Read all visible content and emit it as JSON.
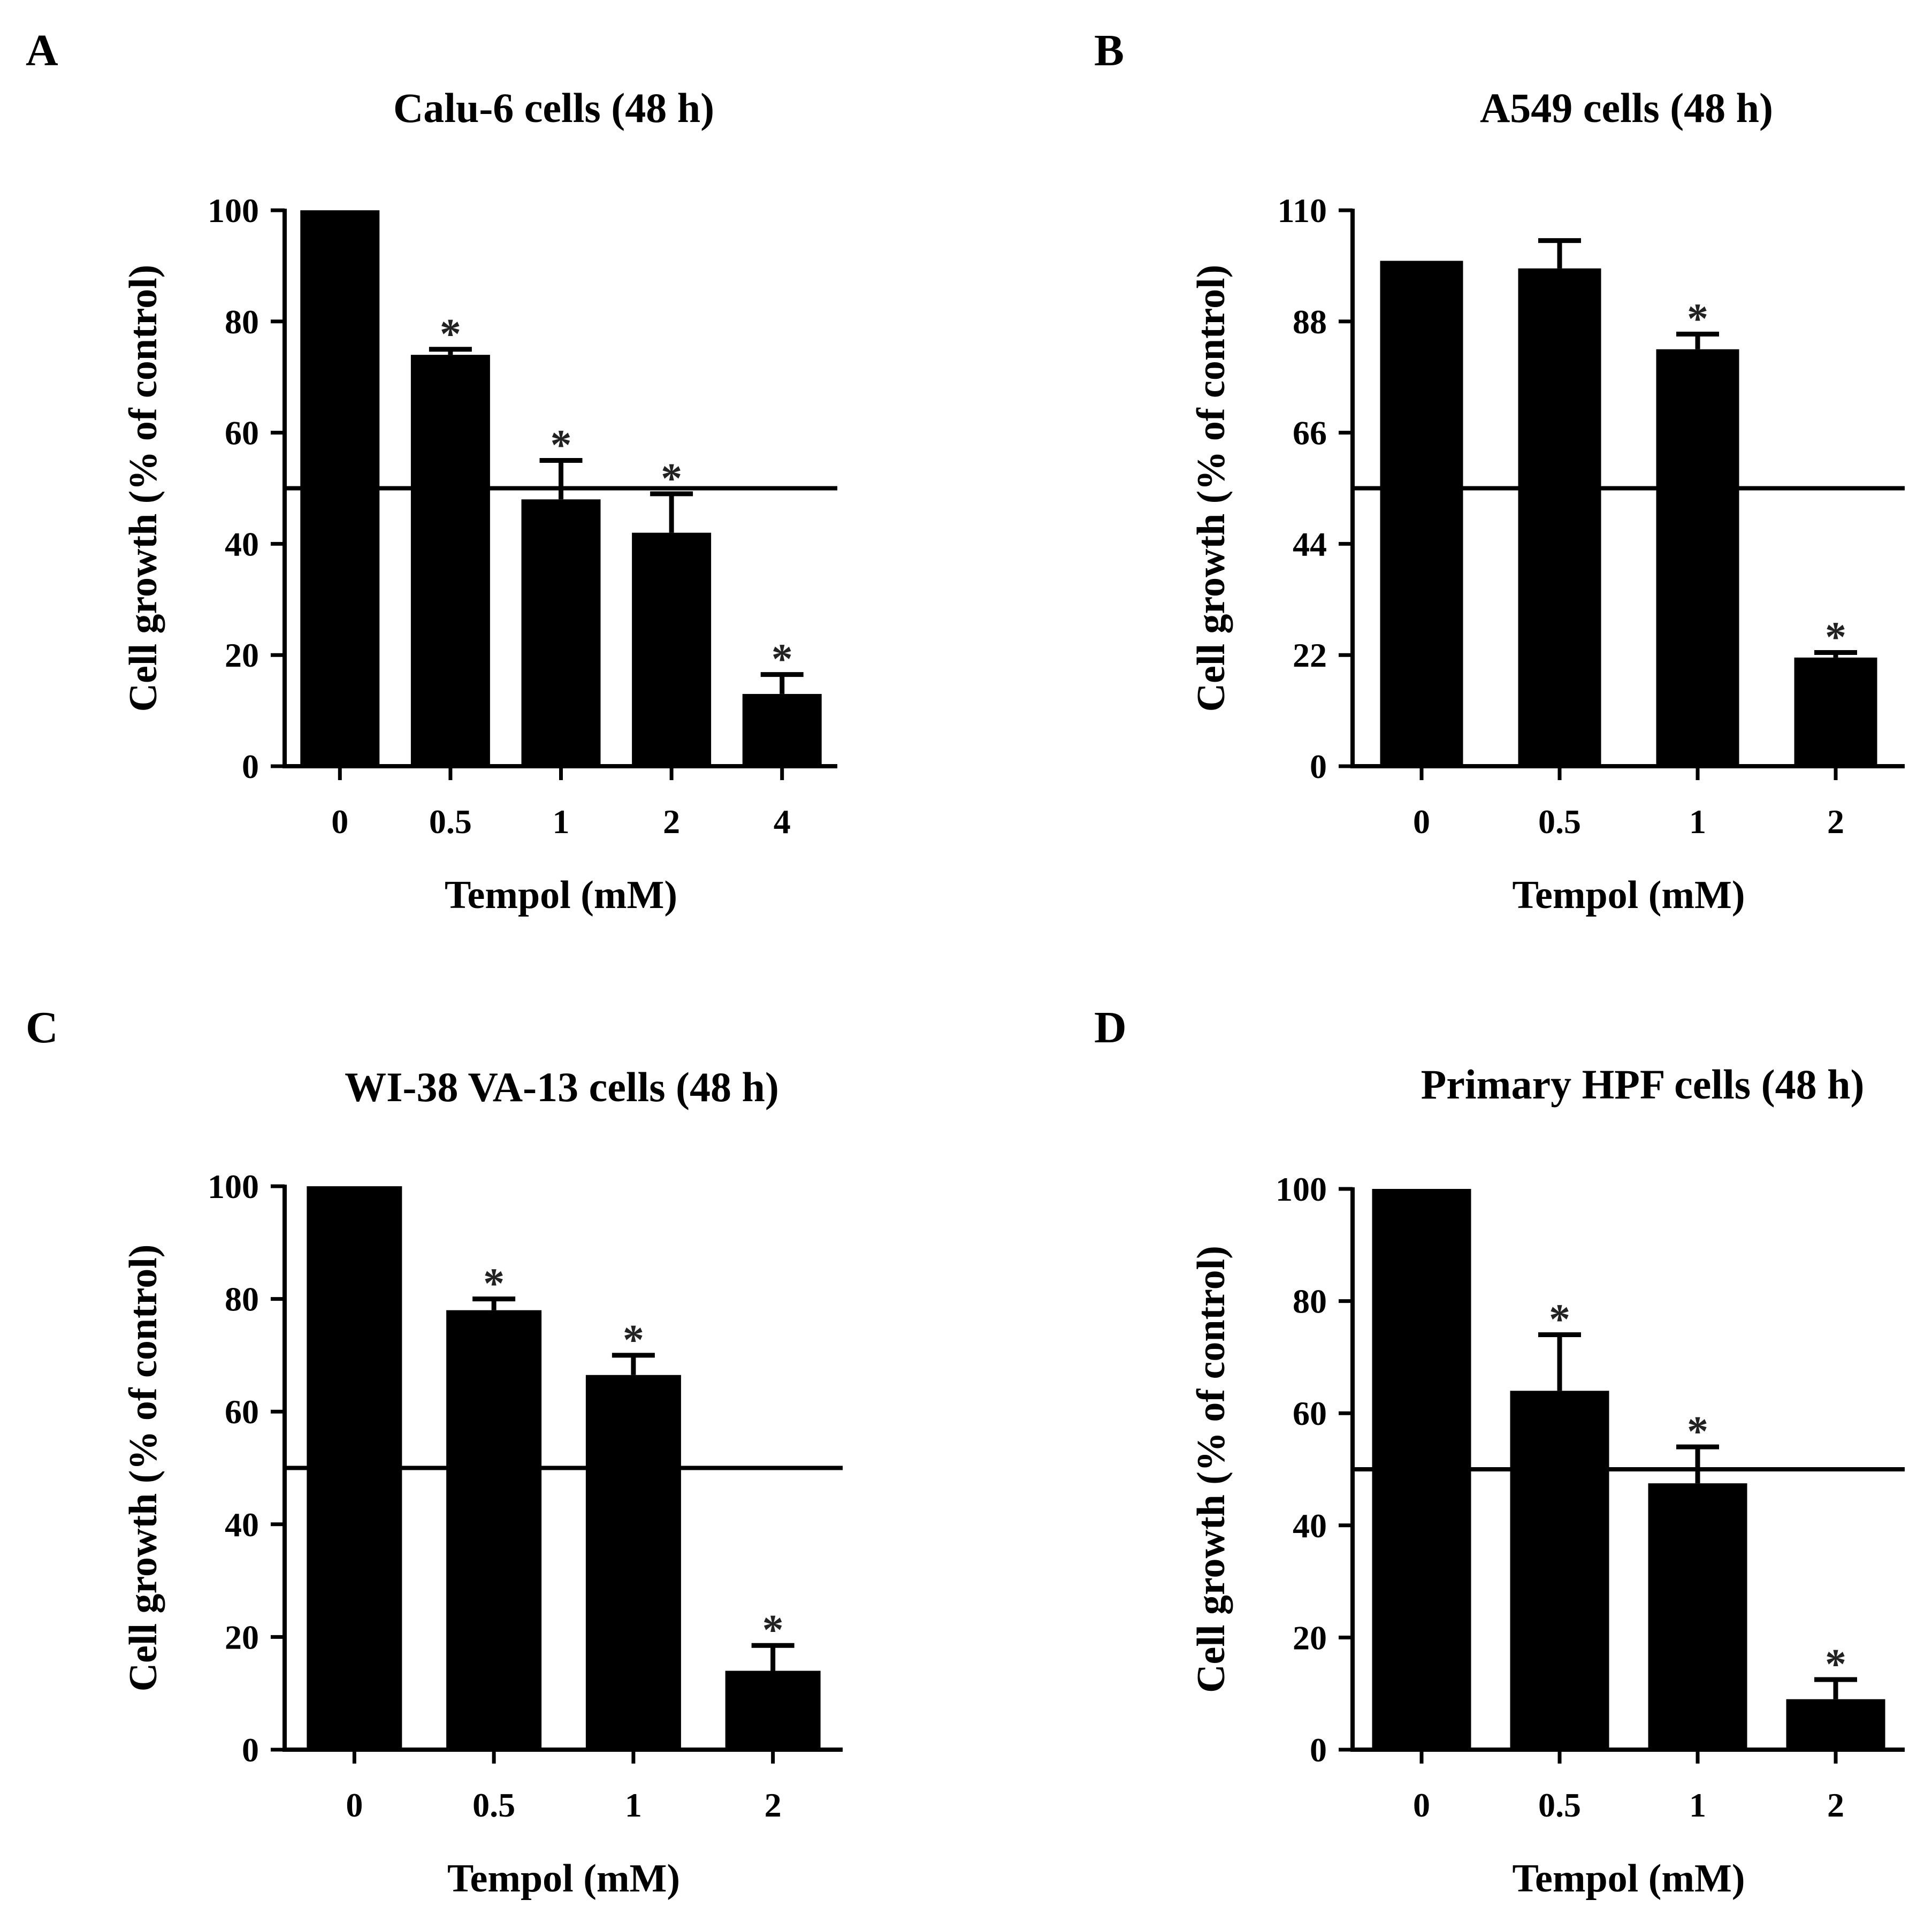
{
  "chart_data": [
    {
      "type": "bar",
      "panel": "A",
      "title": "Calu-6 cells (48 h)",
      "xlabel": "Tempol (mM)",
      "ylabel": "Cell growth (% of control)",
      "categories": [
        "0",
        "0.5",
        "1",
        "2",
        "4"
      ],
      "values": [
        100,
        74,
        48,
        42,
        13
      ],
      "errors": [
        0,
        1,
        7,
        7,
        3.5
      ],
      "significance": [
        "",
        "*",
        "*",
        "*",
        "*"
      ],
      "yticks": [
        0,
        20,
        40,
        60,
        80,
        100
      ],
      "ylim": [
        0,
        100
      ],
      "reference_line": 50,
      "bar_color": "#000000"
    },
    {
      "type": "bar",
      "panel": "B",
      "title": "A549 cells (48 h)",
      "xlabel": "Tempol (mM)",
      "ylabel": "Cell growth (% of control)",
      "categories": [
        "0",
        "0.5",
        "1",
        "2"
      ],
      "values": [
        100,
        98.5,
        82.5,
        21.5
      ],
      "errors": [
        0,
        5.5,
        3,
        1
      ],
      "significance": [
        "",
        "",
        "*",
        "*"
      ],
      "yticks": [
        0,
        22,
        44,
        66,
        88,
        110
      ],
      "ylim": [
        0,
        110
      ],
      "reference_line": 55,
      "bar_color": "#000000"
    },
    {
      "type": "bar",
      "panel": "C",
      "title": "WI-38 VA-13 cells (48 h)",
      "xlabel": "Tempol (mM)",
      "ylabel": "Cell growth (% of control)",
      "categories": [
        "0",
        "0.5",
        "1",
        "2"
      ],
      "values": [
        100,
        78,
        66.5,
        14
      ],
      "errors": [
        0,
        2,
        3.5,
        4.5
      ],
      "significance": [
        "",
        "*",
        "*",
        "*"
      ],
      "yticks": [
        0,
        20,
        40,
        60,
        80,
        100
      ],
      "ylim": [
        0,
        100
      ],
      "reference_line": 50,
      "bar_color": "#000000"
    },
    {
      "type": "bar",
      "panel": "D",
      "title": "Primary HPF cells (48 h)",
      "xlabel": "Tempol (mM)",
      "ylabel": "Cell growth (% of control)",
      "categories": [
        "0",
        "0.5",
        "1",
        "2"
      ],
      "values": [
        100,
        64,
        47.5,
        9
      ],
      "errors": [
        0,
        10,
        6.5,
        3.5
      ],
      "significance": [
        "",
        "*",
        "*",
        "*"
      ],
      "yticks": [
        0,
        20,
        40,
        60,
        80,
        100
      ],
      "ylim": [
        0,
        100
      ],
      "reference_line": 50,
      "bar_color": "#000000"
    }
  ]
}
